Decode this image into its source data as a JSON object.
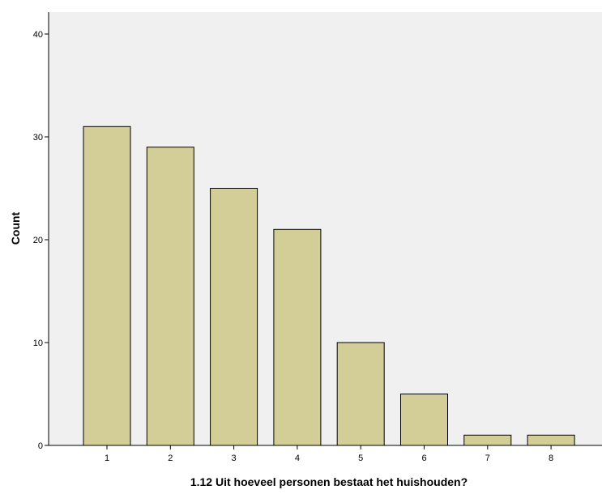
{
  "chart_data": {
    "type": "bar",
    "categories": [
      "1",
      "2",
      "3",
      "4",
      "5",
      "6",
      "7",
      "8"
    ],
    "values": [
      31,
      29,
      25,
      21,
      10,
      5,
      1,
      1
    ],
    "title": "",
    "xlabel": "1.12 Uit hoeveel personen bestaat het huishouden?",
    "ylabel": "Count",
    "ylim": [
      0,
      40
    ],
    "yticks": [
      "0",
      "10",
      "20",
      "30",
      "40"
    ],
    "grid": false,
    "colors": {
      "bar_fill": "#D3CE97",
      "bar_stroke": "#000000",
      "plot_background": "#F0F0F0",
      "page_background": "#FFFFFF"
    }
  }
}
